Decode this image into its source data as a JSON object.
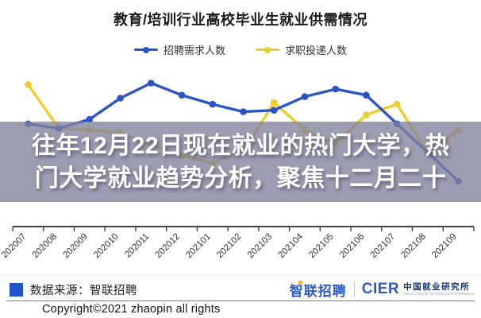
{
  "chart": {
    "title": "教育/培训行业高校毕业生就业供需情况",
    "legend": [
      {
        "label": "招聘需求人数",
        "color": "#2b54c5"
      },
      {
        "label": "求职投递人数",
        "color": "#f0cd2d"
      }
    ]
  },
  "chart_data": {
    "type": "line",
    "title": "教育/培训行业高校毕业生就业供需情况",
    "categories": [
      "202007",
      "202008",
      "202009",
      "202010",
      "202011",
      "202012",
      "202101",
      "202102",
      "202103",
      "202104",
      "202105",
      "202106",
      "202107",
      "202108",
      "202109"
    ],
    "series": [
      {
        "name": "招聘需求人数",
        "color": "#2b54c5",
        "values": [
          68,
          65,
          71,
          85,
          95,
          87,
          81,
          76,
          77,
          86,
          91,
          87,
          68,
          49,
          30
        ]
      },
      {
        "name": "求职投递人数",
        "color": "#f0cd2d",
        "values": [
          94,
          65,
          64,
          62,
          54,
          47,
          42,
          50,
          82,
          64,
          55,
          74,
          81,
          49,
          64
        ]
      }
    ],
    "xlabel": "",
    "ylabel": "",
    "ylim": [
      0,
      100
    ],
    "legend_position": "top",
    "grid": false
  },
  "overlay": {
    "lines": [
      "往年12月22日现在就业的热门大学，热",
      "门大学就业趋势分析，聚焦十二月二十"
    ]
  },
  "footer": {
    "source_label": "数据来源：智联招聘",
    "zhaopin_logo": "智联招聘",
    "cier_acronym": "CIER",
    "cier_cn": "中国就业研究所",
    "cier_en": "China Institute for Employment Research",
    "copyright": "Copyright©2021 zhaopin all rights"
  },
  "colors": {
    "series_blue": "#2b54c5",
    "series_yellow": "#f0cd2d",
    "overlay_band": "#8282a0",
    "brand_blue": "#2b5ac6",
    "brand_yellow": "#f5b52e"
  }
}
